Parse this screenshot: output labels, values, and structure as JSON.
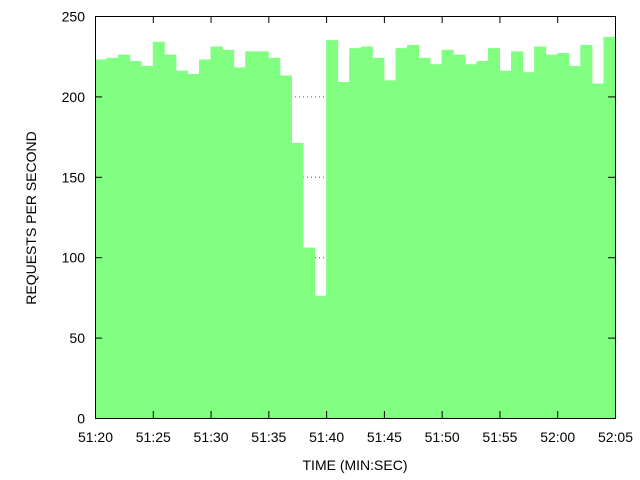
{
  "chart_data": {
    "type": "bar",
    "xlabel": "TIME (MIN:SEC)",
    "ylabel": "REQUESTS PER SECOND",
    "ylim": [
      0,
      250
    ],
    "xlim": [
      "51:20",
      "52:05"
    ],
    "bar_interval_seconds": 1,
    "x_tick_labels": [
      "51:20",
      "51:25",
      "51:30",
      "51:35",
      "51:40",
      "51:45",
      "51:50",
      "51:55",
      "52:00",
      "52:05"
    ],
    "y_tick_labels": [
      "0",
      "50",
      "100",
      "150",
      "200",
      "250"
    ],
    "grid": "horizontal dotted",
    "colors": {
      "bars": "#80ff80",
      "axis": "#000000",
      "grid": "#555555"
    },
    "series": [
      {
        "x": [
          "51:20",
          "51:21",
          "51:22",
          "51:23",
          "51:24",
          "51:25",
          "51:26",
          "51:27",
          "51:28",
          "51:29",
          "51:30",
          "51:31",
          "51:32",
          "51:33",
          "51:34",
          "51:35",
          "51:36",
          "51:37",
          "51:38",
          "51:39",
          "51:40",
          "51:41",
          "51:42",
          "51:43",
          "51:44",
          "51:45",
          "51:46",
          "51:47",
          "51:48",
          "51:49",
          "51:50",
          "51:51",
          "51:52",
          "51:53",
          "51:54",
          "51:55",
          "51:56",
          "51:57",
          "51:58",
          "51:59",
          "52:00",
          "52:01",
          "52:02",
          "52:03",
          "52:04"
        ],
        "values": [
          223,
          224,
          226,
          222,
          219,
          234,
          226,
          216,
          214,
          223,
          231,
          229,
          218,
          228,
          228,
          224,
          213,
          171,
          106,
          76,
          235,
          209,
          230,
          231,
          224,
          210,
          230,
          232,
          224,
          220,
          229,
          226,
          220,
          222,
          230,
          216,
          228,
          215,
          231,
          226,
          227,
          219,
          232,
          208,
          237
        ]
      }
    ]
  }
}
